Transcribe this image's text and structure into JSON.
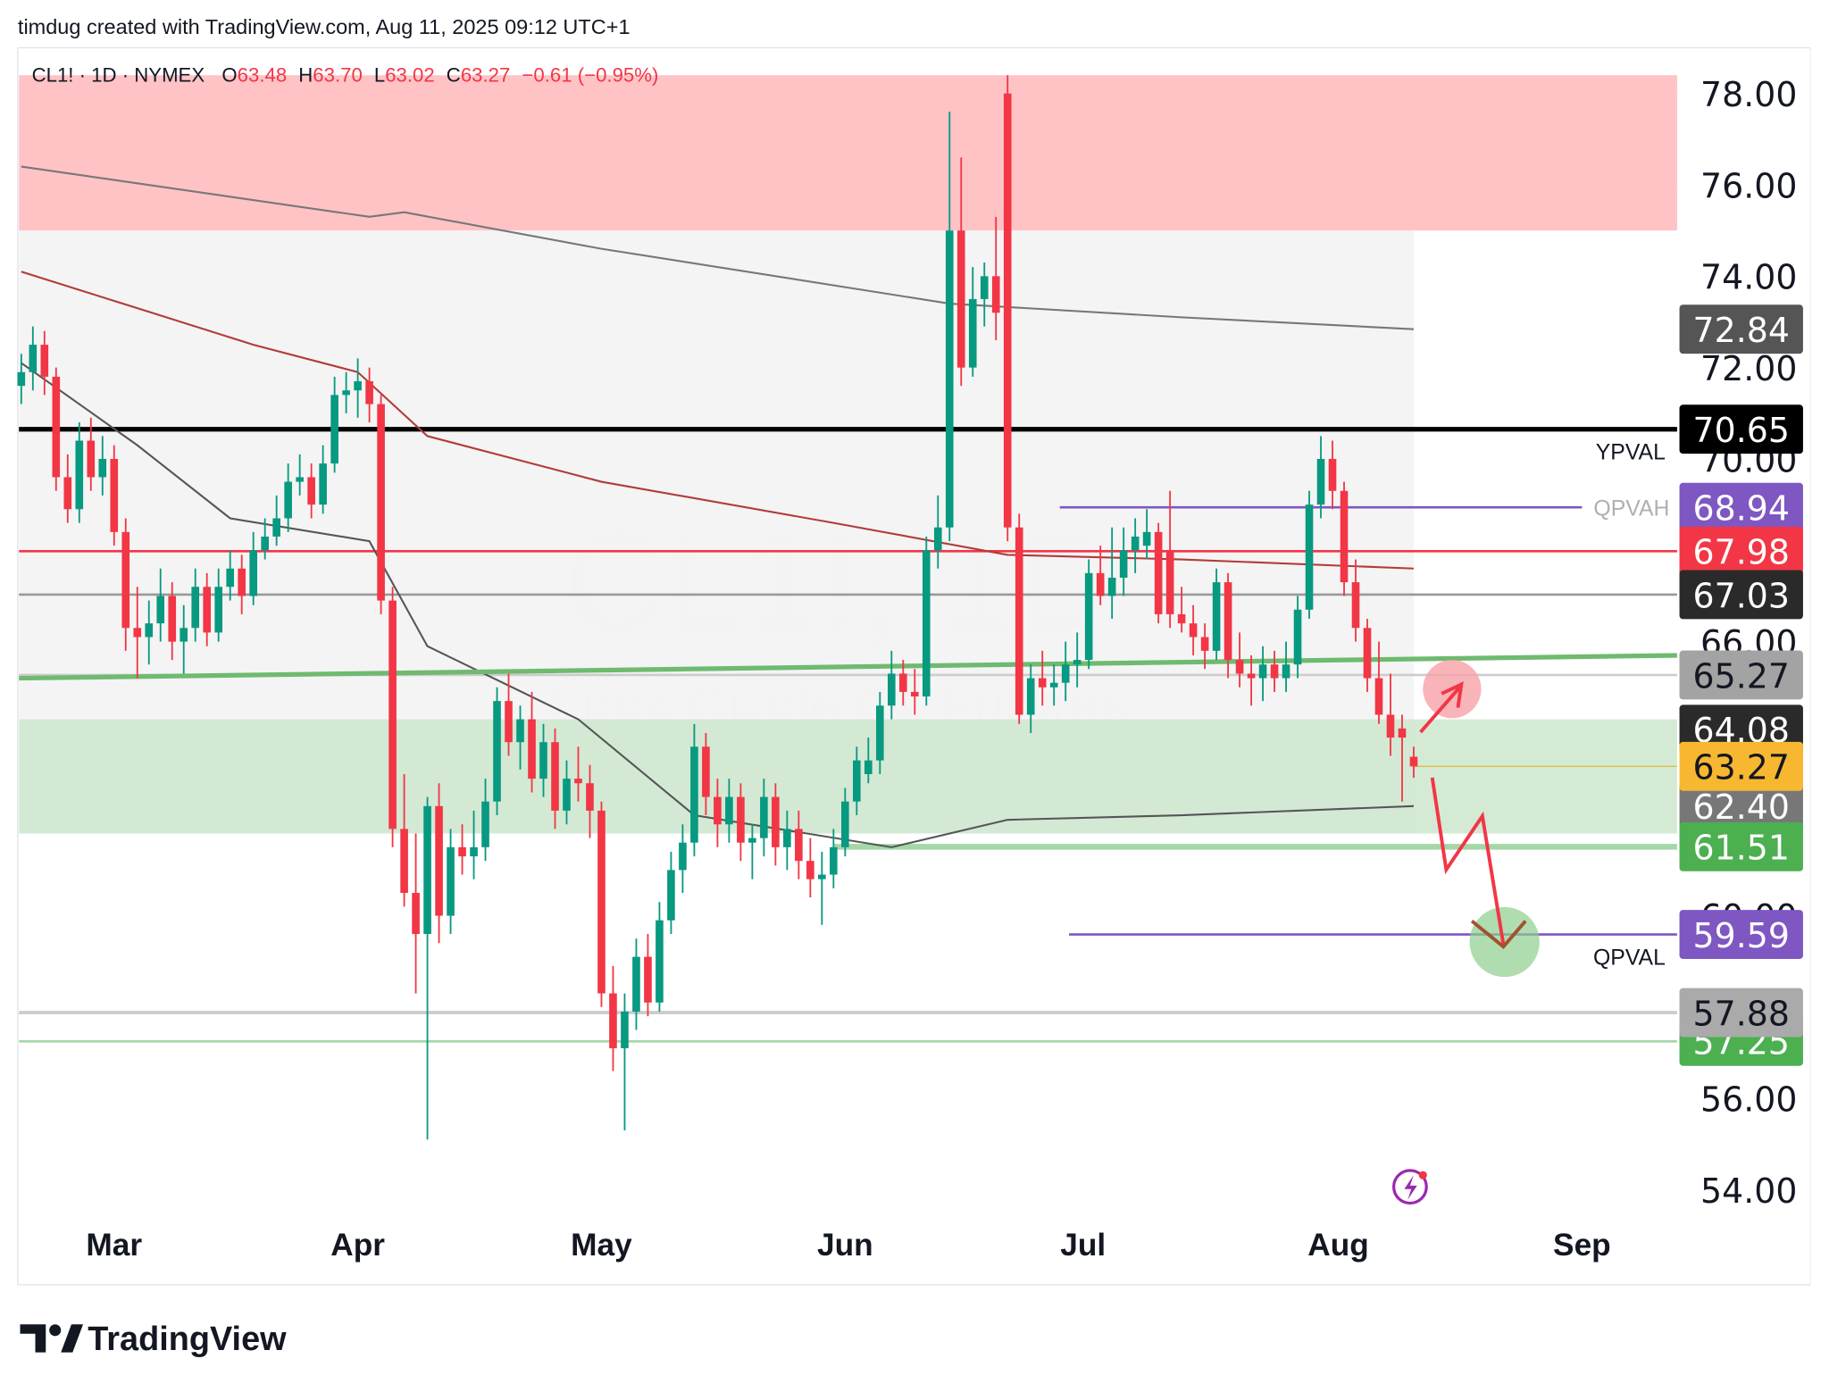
{
  "header": "timdug created with TradingView.com, Aug 11, 2025 09:12 UTC+1",
  "legend": {
    "symbol": "CL1! · 1D · NYMEX",
    "fields": [
      {
        "key": "O",
        "value": "63.48"
      },
      {
        "key": "H",
        "value": "63.70"
      },
      {
        "key": "L",
        "value": "63.02"
      },
      {
        "key": "C",
        "value": "63.27"
      }
    ],
    "change": "−0.61 (−0.95%)"
  },
  "watermark": {
    "title": "CL1!, 1D",
    "subtitle": "Light Crude Oil Futures"
  },
  "logo": "TradingView",
  "chart_data": {
    "type": "candlestick",
    "up_color": "#089981",
    "down_color": "#f23645",
    "xlim": [
      -0.2,
      142.7
    ],
    "ylim": [
      53.3,
      79.0
    ],
    "xticks": [
      {
        "value": 8,
        "label": "Mar"
      },
      {
        "value": 29,
        "label": "Apr"
      },
      {
        "value": 50,
        "label": "May"
      },
      {
        "value": 71,
        "label": "Jun"
      },
      {
        "value": 91.5,
        "label": "Jul"
      },
      {
        "value": 113.5,
        "label": "Aug"
      },
      {
        "value": 134.5,
        "label": "Sep"
      }
    ],
    "yticks": [
      {
        "value": 54,
        "label": "54.00"
      },
      {
        "value": 56,
        "label": "56.00"
      },
      {
        "value": 58,
        "label": "58.00"
      },
      {
        "value": 60,
        "label": "60.00"
      },
      {
        "value": 62,
        "label": "62.00"
      },
      {
        "value": 64,
        "label": "64.00"
      },
      {
        "value": 66,
        "label": "66.00"
      },
      {
        "value": 68,
        "label": "68.00"
      },
      {
        "value": 70,
        "label": "70.00"
      },
      {
        "value": 72,
        "label": "72.00"
      },
      {
        "value": 74,
        "label": "74.00"
      },
      {
        "value": 76,
        "label": "76.00"
      },
      {
        "value": 78,
        "label": "78.00"
      }
    ],
    "zones": [
      {
        "from": 75.0,
        "to": 78.4,
        "x": [
          -0.2,
          142.7
        ],
        "color": "#ffbcc0"
      },
      {
        "from": 61.8,
        "to": 75.0,
        "x": [
          -0.2,
          120
        ],
        "color": "#f3f3f3"
      },
      {
        "from": 61.8,
        "to": 64.3,
        "x": [
          -0.2,
          142.7
        ],
        "color": "#cfe8d0"
      }
    ],
    "indicators": [
      {
        "color": "#777777",
        "x": [
          0,
          30,
          33,
          50,
          80,
          100,
          120
        ],
        "values": [
          76.4,
          75.3,
          75.4,
          74.6,
          73.4,
          73.1,
          72.84
        ]
      },
      {
        "color": "#b23a3a",
        "x": [
          0,
          10,
          20,
          29,
          35,
          50,
          70,
          85,
          100,
          120
        ],
        "values": [
          74.1,
          73.3,
          72.5,
          71.9,
          70.5,
          69.5,
          68.6,
          67.9,
          67.8,
          67.6
        ]
      },
      {
        "color": "#555555",
        "x": [
          0,
          10,
          18,
          30,
          35,
          48,
          58,
          75,
          85,
          100,
          120
        ],
        "values": [
          72.1,
          70.3,
          68.7,
          68.2,
          65.9,
          64.3,
          62.2,
          61.5,
          62.1,
          62.2,
          62.4
        ]
      }
    ],
    "trendline": {
      "color": "#6fba6f",
      "x": [
        -0.2,
        142.7
      ],
      "values": [
        65.2,
        65.7
      ]
    },
    "levels": [
      {
        "value": 72.84,
        "bg": "#555555",
        "fg": "#ffffff"
      },
      {
        "value": 70.65,
        "bg": "#000000",
        "fg": "#ffffff",
        "line": [
          -0.2,
          142.7
        ],
        "line_color": "#000000",
        "line_width": 4,
        "tag": "YPVAL",
        "tag_color": "#131722"
      },
      {
        "value": 68.94,
        "bg": "#7e57c2",
        "fg": "#ffffff",
        "line": [
          89.5,
          134.5
        ],
        "line_color": "#7e57c2",
        "line_width": 2,
        "tag": "QPVAH",
        "tag_color": "#b0b0b0"
      },
      {
        "value": 67.98,
        "bg": "#f23645",
        "fg": "#ffffff",
        "line": [
          -0.2,
          142.7
        ],
        "line_color": "#f23645",
        "line_width": 2
      },
      {
        "value": 67.03,
        "bg": "#2a2a2a",
        "fg": "#ffffff",
        "line": [
          -0.2,
          142.7
        ],
        "line_color": "#999999",
        "line_width": 2
      },
      {
        "value": 65.27,
        "bg": "#a3a3a3",
        "fg": "#131722",
        "line": [
          -0.2,
          142.7
        ],
        "line_color": "#cccccc",
        "line_width": 2
      },
      {
        "value": 64.08,
        "bg": "#2a2a2a",
        "fg": "#ffffff"
      },
      {
        "value": 62.4,
        "label": "62.40",
        "bg": "#777777",
        "fg": "#ffffff"
      },
      {
        "value": 63.27,
        "bg": "#f7b731",
        "fg": "#131722",
        "line": [
          120,
          142.7
        ],
        "line_color": "#e0c040",
        "line_width": 1
      },
      {
        "value": 61.51,
        "bg": "#4caf50",
        "fg": "#ffffff",
        "line": [
          70,
          142.7
        ],
        "line_color": "#a5d6a7",
        "line_width": 5
      },
      {
        "value": 59.59,
        "bg": "#7e57c2",
        "fg": "#ffffff",
        "line": [
          90.3,
          142.7
        ],
        "line_color": "#7e57c2",
        "line_width": 2,
        "tag": "QPVAL",
        "tag_color": "#131722"
      },
      {
        "value": 57.25,
        "bg": "#4caf50",
        "fg": "#ffffff",
        "line": [
          -0.2,
          142.7
        ],
        "line_color": "#a5d6a7",
        "line_width": 2
      },
      {
        "value": 57.88,
        "bg": "#aaaaaa",
        "fg": "#131722",
        "line": [
          -0.2,
          142.7
        ],
        "line_color": "#cccccc",
        "line_width": 3
      }
    ],
    "ohlc": [
      [
        71.6,
        72.3,
        71.2,
        71.9
      ],
      [
        71.9,
        72.9,
        71.5,
        72.5
      ],
      [
        72.5,
        72.8,
        71.4,
        71.8
      ],
      [
        71.8,
        72.0,
        69.3,
        69.6
      ],
      [
        69.6,
        70.1,
        68.6,
        68.9
      ],
      [
        68.9,
        70.8,
        68.6,
        70.4
      ],
      [
        70.4,
        70.9,
        69.3,
        69.6
      ],
      [
        69.6,
        70.5,
        69.2,
        70.0
      ],
      [
        70.0,
        70.3,
        68.1,
        68.4
      ],
      [
        68.4,
        68.7,
        65.8,
        66.3
      ],
      [
        66.3,
        67.2,
        65.2,
        66.1
      ],
      [
        66.1,
        66.9,
        65.5,
        66.4
      ],
      [
        66.4,
        67.6,
        66.0,
        67.0
      ],
      [
        67.0,
        67.3,
        65.6,
        66.0
      ],
      [
        66.0,
        66.8,
        65.3,
        66.3
      ],
      [
        66.3,
        67.6,
        66.0,
        67.2
      ],
      [
        67.2,
        67.5,
        65.9,
        66.2
      ],
      [
        66.2,
        67.6,
        66.0,
        67.2
      ],
      [
        67.2,
        68.0,
        66.9,
        67.6
      ],
      [
        67.6,
        67.9,
        66.6,
        67.0
      ],
      [
        67.0,
        68.4,
        66.8,
        68.0
      ],
      [
        68.0,
        68.7,
        67.8,
        68.3
      ],
      [
        68.3,
        69.2,
        68.1,
        68.7
      ],
      [
        68.7,
        69.9,
        68.4,
        69.5
      ],
      [
        69.5,
        70.1,
        69.2,
        69.6
      ],
      [
        69.6,
        69.9,
        68.7,
        69.0
      ],
      [
        69.0,
        70.3,
        68.8,
        69.9
      ],
      [
        69.9,
        71.8,
        69.7,
        71.4
      ],
      [
        71.4,
        71.9,
        71.0,
        71.5
      ],
      [
        71.5,
        72.2,
        70.9,
        71.7
      ],
      [
        71.7,
        72.0,
        70.8,
        71.2
      ],
      [
        71.2,
        71.4,
        66.6,
        66.9
      ],
      [
        66.9,
        67.2,
        61.5,
        61.9
      ],
      [
        61.9,
        63.1,
        60.2,
        60.5
      ],
      [
        60.5,
        61.8,
        58.3,
        59.6
      ],
      [
        59.6,
        62.6,
        55.1,
        62.4
      ],
      [
        62.4,
        62.9,
        59.4,
        60.0
      ],
      [
        60.0,
        61.9,
        59.6,
        61.5
      ],
      [
        61.5,
        62.0,
        60.9,
        61.3
      ],
      [
        61.3,
        62.3,
        60.8,
        61.5
      ],
      [
        61.5,
        63.0,
        61.2,
        62.5
      ],
      [
        62.5,
        65.0,
        62.2,
        64.7
      ],
      [
        64.7,
        65.3,
        63.5,
        63.8
      ],
      [
        63.8,
        64.6,
        63.2,
        64.3
      ],
      [
        64.3,
        64.9,
        62.7,
        63.0
      ],
      [
        63.0,
        64.2,
        62.6,
        63.8
      ],
      [
        63.8,
        64.1,
        61.9,
        62.3
      ],
      [
        62.3,
        63.4,
        62.0,
        63.0
      ],
      [
        63.0,
        63.7,
        62.5,
        62.9
      ],
      [
        62.9,
        63.3,
        61.7,
        62.3
      ],
      [
        62.3,
        62.5,
        58.0,
        58.3
      ],
      [
        58.3,
        58.9,
        56.6,
        57.1
      ],
      [
        57.1,
        58.3,
        55.3,
        57.9
      ],
      [
        57.9,
        59.5,
        57.5,
        59.1
      ],
      [
        59.1,
        59.6,
        57.8,
        58.1
      ],
      [
        58.1,
        60.3,
        57.9,
        59.9
      ],
      [
        59.9,
        61.4,
        59.6,
        61.0
      ],
      [
        61.0,
        62.0,
        60.5,
        61.6
      ],
      [
        61.6,
        64.2,
        61.3,
        63.7
      ],
      [
        63.7,
        64.0,
        62.2,
        62.6
      ],
      [
        62.6,
        63.0,
        61.5,
        62.0
      ],
      [
        62.0,
        63.0,
        61.6,
        62.6
      ],
      [
        62.6,
        62.9,
        61.2,
        61.6
      ],
      [
        61.6,
        62.0,
        60.8,
        61.7
      ],
      [
        61.7,
        63.0,
        61.3,
        62.6
      ],
      [
        62.6,
        62.9,
        61.1,
        61.5
      ],
      [
        61.5,
        62.3,
        61.0,
        61.9
      ],
      [
        61.9,
        62.3,
        60.8,
        61.2
      ],
      [
        61.2,
        61.7,
        60.4,
        60.8
      ],
      [
        60.8,
        61.4,
        59.8,
        60.9
      ],
      [
        60.9,
        61.9,
        60.6,
        61.5
      ],
      [
        61.5,
        62.8,
        61.3,
        62.5
      ],
      [
        62.5,
        63.7,
        62.2,
        63.4
      ],
      [
        63.1,
        63.9,
        62.9,
        63.4
      ],
      [
        63.4,
        64.9,
        63.1,
        64.6
      ],
      [
        64.6,
        65.8,
        64.3,
        65.3
      ],
      [
        65.3,
        65.6,
        64.6,
        64.9
      ],
      [
        64.9,
        65.4,
        64.4,
        64.8
      ],
      [
        64.8,
        68.3,
        64.6,
        68.0
      ],
      [
        68.0,
        69.2,
        67.6,
        68.5
      ],
      [
        68.5,
        77.6,
        68.2,
        75.0
      ],
      [
        75.0,
        76.6,
        71.6,
        72.0
      ],
      [
        72.0,
        74.2,
        71.8,
        73.5
      ],
      [
        73.5,
        74.3,
        72.9,
        74.0
      ],
      [
        74.0,
        75.3,
        72.6,
        73.2
      ],
      [
        78.0,
        78.4,
        68.2,
        68.5
      ],
      [
        68.5,
        68.8,
        64.2,
        64.4
      ],
      [
        64.4,
        65.5,
        64.0,
        65.2
      ],
      [
        65.2,
        65.8,
        64.6,
        65.0
      ],
      [
        65.0,
        65.5,
        64.6,
        65.1
      ],
      [
        65.1,
        66.0,
        64.7,
        65.5
      ],
      [
        65.5,
        66.2,
        65.0,
        65.6
      ],
      [
        65.6,
        67.8,
        65.4,
        67.5
      ],
      [
        67.5,
        68.1,
        66.8,
        67.0
      ],
      [
        67.0,
        68.5,
        66.5,
        67.4
      ],
      [
        67.4,
        68.5,
        67.0,
        68.0
      ],
      [
        68.0,
        68.7,
        67.5,
        68.3
      ],
      [
        68.1,
        68.9,
        67.8,
        68.4
      ],
      [
        68.4,
        68.6,
        66.4,
        66.6
      ],
      [
        68.0,
        69.3,
        66.3,
        66.6
      ],
      [
        66.6,
        67.2,
        66.2,
        66.4
      ],
      [
        66.4,
        66.8,
        65.7,
        66.1
      ],
      [
        66.1,
        66.4,
        65.4,
        65.8
      ],
      [
        65.8,
        67.6,
        65.6,
        67.3
      ],
      [
        67.3,
        67.5,
        65.2,
        65.6
      ],
      [
        65.6,
        66.2,
        65.0,
        65.3
      ],
      [
        65.3,
        65.7,
        64.6,
        65.2
      ],
      [
        65.2,
        65.9,
        64.7,
        65.5
      ],
      [
        65.5,
        65.8,
        64.9,
        65.2
      ],
      [
        65.2,
        66.0,
        64.9,
        65.5
      ],
      [
        65.5,
        67.0,
        65.2,
        66.7
      ],
      [
        66.7,
        69.3,
        66.5,
        69.0
      ],
      [
        69.0,
        70.5,
        68.7,
        70.0
      ],
      [
        70.0,
        70.4,
        68.9,
        69.3
      ],
      [
        69.3,
        69.5,
        67.0,
        67.3
      ],
      [
        67.3,
        67.8,
        66.0,
        66.3
      ],
      [
        66.3,
        66.5,
        64.9,
        65.2
      ],
      [
        65.2,
        66.0,
        64.2,
        64.4
      ],
      [
        64.4,
        65.3,
        63.5,
        63.9
      ],
      [
        64.1,
        64.4,
        62.5,
        63.9
      ],
      [
        63.48,
        63.7,
        63.02,
        63.27
      ]
    ]
  }
}
